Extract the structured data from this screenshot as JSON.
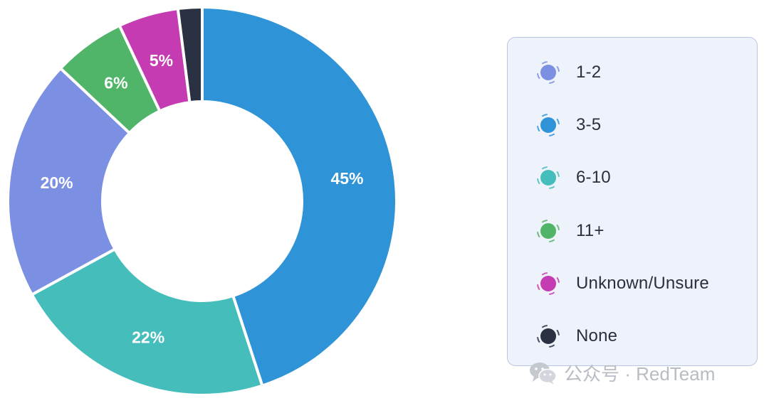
{
  "chart_data": {
    "type": "pie",
    "variant": "donut",
    "categories": [
      "1-2",
      "3-5",
      "6-10",
      "11+",
      "Unknown/Unsure",
      "None"
    ],
    "values": [
      20,
      45,
      22,
      6,
      5,
      2
    ],
    "labels": [
      "20%",
      "45%",
      "22%",
      "6%",
      "5%",
      ""
    ],
    "order_clockwise_from_top": [
      "3-5",
      "6-10",
      "1-2",
      "11+",
      "Unknown/Unsure",
      "None"
    ],
    "colors": {
      "1-2": "#7b8fe3",
      "3-5": "#2f93d8",
      "6-10": "#45bdbb",
      "11+": "#50b568",
      "Unknown/Unsure": "#c53bb1",
      "None": "#2a3142"
    },
    "legend_position": "right",
    "title": ""
  },
  "legend": {
    "items": [
      {
        "label": "1-2",
        "color": "#7b8fe3"
      },
      {
        "label": "3-5",
        "color": "#2f93d8"
      },
      {
        "label": "6-10",
        "color": "#45bdbb"
      },
      {
        "label": "11+",
        "color": "#50b568"
      },
      {
        "label": "Unknown/Unsure",
        "color": "#c53bb1"
      },
      {
        "label": "None",
        "color": "#2a3142"
      }
    ]
  },
  "watermark": {
    "text": "公众号 · RedTeam",
    "icon": "wechat-icon"
  }
}
